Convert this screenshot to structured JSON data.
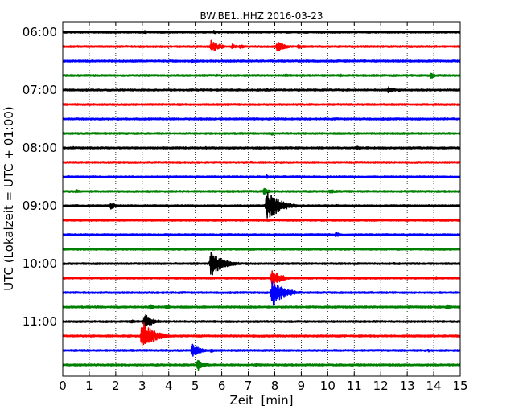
{
  "chart_data": {
    "type": "line",
    "subtype": "seismogram-dayplot",
    "title": "BW.BE1..HHZ 2016-03-23",
    "xlabel": "Zeit  [min]",
    "ylabel": "UTC (Lokalzeit = UTC + 01:00)",
    "xlim": [
      0,
      15
    ],
    "x_ticks": [
      "0",
      "1",
      "2",
      "3",
      "4",
      "5",
      "6",
      "7",
      "8",
      "9",
      "10",
      "11",
      "12",
      "13",
      "14",
      "15"
    ],
    "y_tick_labels": [
      "06:00",
      "07:00",
      "08:00",
      "09:00",
      "10:00",
      "11:00"
    ],
    "grid": "x-dotted",
    "trace_colors": [
      "#000000",
      "#ff0000",
      "#0000ff",
      "#008000"
    ],
    "traces": [
      {
        "start": "06:00",
        "events": [
          [
            1.8,
            0.15
          ],
          [
            3.1,
            0.25
          ],
          [
            5.7,
            0.25
          ],
          [
            10.6,
            0.15
          ],
          [
            11.4,
            0.1
          ],
          [
            13.1,
            0.15
          ]
        ]
      },
      {
        "start": "06:15",
        "events": [
          [
            5.6,
            1.0
          ],
          [
            5.9,
            0.45
          ],
          [
            6.4,
            0.35
          ],
          [
            6.7,
            0.3
          ],
          [
            8.1,
            0.85
          ],
          [
            8.9,
            0.3
          ],
          [
            11.4,
            0.1
          ]
        ]
      },
      {
        "start": "06:30",
        "events": [
          [
            4.9,
            0.2
          ],
          [
            5.6,
            0.15
          ],
          [
            7.3,
            0.2
          ],
          [
            9.2,
            0.15
          ],
          [
            11.4,
            0.15
          ]
        ]
      },
      {
        "start": "06:45",
        "events": [
          [
            5.8,
            0.2
          ],
          [
            8.4,
            0.25
          ],
          [
            10.5,
            0.2
          ],
          [
            13.9,
            0.45
          ]
        ]
      },
      {
        "start": "07:00",
        "events": [
          [
            3.0,
            0.1
          ],
          [
            5.1,
            0.15
          ],
          [
            7.7,
            0.2
          ],
          [
            12.3,
            0.5
          ],
          [
            12.7,
            0.2
          ]
        ]
      },
      {
        "start": "07:15",
        "events": [
          [
            1.7,
            0.1
          ],
          [
            9.3,
            0.15
          ],
          [
            14.0,
            0.15
          ]
        ]
      },
      {
        "start": "07:30",
        "events": [
          [
            4.1,
            0.1
          ],
          [
            7.9,
            0.1
          ],
          [
            12.1,
            0.15
          ]
        ]
      },
      {
        "start": "07:45",
        "events": [
          [
            3.4,
            0.1
          ],
          [
            7.9,
            0.25
          ],
          [
            9.3,
            0.1
          ],
          [
            12.6,
            0.15
          ]
        ]
      },
      {
        "start": "08:00",
        "events": [
          [
            0.4,
            0.2
          ],
          [
            5.4,
            0.2
          ],
          [
            11.1,
            0.3
          ]
        ]
      },
      {
        "start": "08:15",
        "events": [
          [
            2.4,
            0.15
          ],
          [
            3.5,
            0.2
          ],
          [
            7.1,
            0.2
          ],
          [
            9.6,
            0.15
          ]
        ]
      },
      {
        "start": "08:30",
        "events": [
          [
            0.2,
            0.2
          ],
          [
            7.7,
            0.25
          ],
          [
            10.0,
            0.15
          ]
        ]
      },
      {
        "start": "08:45",
        "events": [
          [
            0.5,
            0.3
          ],
          [
            3.2,
            0.2
          ],
          [
            7.6,
            0.45
          ],
          [
            10.1,
            0.35
          ],
          [
            13.6,
            0.15
          ]
        ]
      },
      {
        "start": "09:00",
        "events": [
          [
            1.8,
            0.5
          ],
          [
            7.7,
            2.5
          ],
          [
            8.5,
            0.2
          ],
          [
            10.3,
            0.2
          ],
          [
            12.6,
            0.1
          ]
        ]
      },
      {
        "start": "09:15",
        "events": [
          [
            1.0,
            0.1
          ],
          [
            6.2,
            0.1
          ],
          [
            7.3,
            0.15
          ],
          [
            8.6,
            0.15
          ],
          [
            11.0,
            0.1
          ]
        ]
      },
      {
        "start": "09:30",
        "events": [
          [
            6.5,
            0.15
          ],
          [
            9.1,
            0.1
          ],
          [
            10.3,
            0.4
          ]
        ]
      },
      {
        "start": "09:45",
        "events": [
          [
            0.7,
            0.1
          ],
          [
            4.8,
            0.15
          ],
          [
            8.4,
            0.1
          ]
        ]
      },
      {
        "start": "10:00",
        "events": [
          [
            1.8,
            0.1
          ],
          [
            5.6,
            1.9
          ],
          [
            12.5,
            0.15
          ],
          [
            14.7,
            0.1
          ]
        ]
      },
      {
        "start": "10:15",
        "events": [
          [
            5.5,
            0.1
          ],
          [
            7.9,
            1.3
          ],
          [
            11.1,
            0.1
          ],
          [
            14.1,
            0.2
          ]
        ]
      },
      {
        "start": "10:30",
        "events": [
          [
            2.9,
            0.1
          ],
          [
            7.9,
            2.0
          ],
          [
            11.1,
            0.15
          ]
        ]
      },
      {
        "start": "10:45",
        "events": [
          [
            1.3,
            0.2
          ],
          [
            2.3,
            0.2
          ],
          [
            3.3,
            0.4
          ],
          [
            3.9,
            0.35
          ],
          [
            8.0,
            0.15
          ],
          [
            14.5,
            0.4
          ]
        ]
      },
      {
        "start": "11:00",
        "events": [
          [
            2.6,
            0.25
          ],
          [
            3.1,
            1.1
          ],
          [
            7.9,
            0.15
          ],
          [
            13.0,
            0.2
          ]
        ]
      },
      {
        "start": "11:15",
        "events": [
          [
            3.0,
            2.1
          ],
          [
            3.5,
            0.35
          ],
          [
            13.4,
            0.1
          ]
        ]
      },
      {
        "start": "11:30",
        "events": [
          [
            3.9,
            0.2
          ],
          [
            4.9,
            1.0
          ],
          [
            5.6,
            0.3
          ],
          [
            7.8,
            0.1
          ],
          [
            13.8,
            0.25
          ]
        ]
      },
      {
        "start": "11:45",
        "events": [
          [
            0.5,
            0.15
          ],
          [
            5.1,
            0.8
          ],
          [
            7.3,
            0.25
          ],
          [
            13.1,
            0.15
          ]
        ]
      }
    ]
  }
}
